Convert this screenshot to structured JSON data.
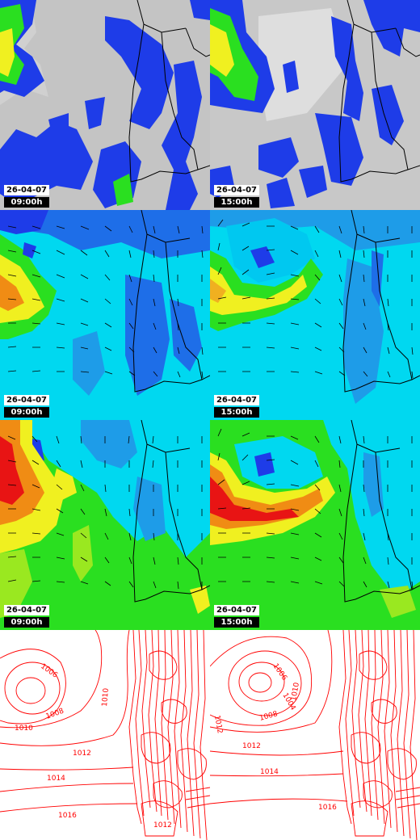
{
  "rows": [
    {
      "id": "cloud",
      "panels": [
        {
          "date": "26-04-07",
          "time": "09:00h"
        },
        {
          "date": "26-04-07",
          "time": "15:00h"
        }
      ]
    },
    {
      "id": "wind-low",
      "panels": [
        {
          "date": "26-04-07",
          "time": "09:00h"
        },
        {
          "date": "26-04-07",
          "time": "15:00h"
        }
      ]
    },
    {
      "id": "wind-high",
      "panels": [
        {
          "date": "26-04-07",
          "time": "09:00h"
        },
        {
          "date": "26-04-07",
          "time": "15:00h"
        }
      ]
    },
    {
      "id": "pressure",
      "panels": [
        {},
        {}
      ]
    }
  ],
  "isobar_labels": {
    "left": [
      "1006",
      "1008",
      "1010",
      "1010",
      "1012",
      "1014",
      "1016",
      "1012"
    ],
    "right": [
      "1006",
      "1004",
      "1008",
      "1010",
      "1012",
      "1012",
      "1014",
      "1016"
    ]
  },
  "colors": {
    "cloud_bg": "#c8c8c8",
    "coast": "#000000",
    "isobar": "#ff0000",
    "blue": "#1e3ce8",
    "cyan": "#00e6ff",
    "green": "#2adf20",
    "yellow": "#f0f020",
    "red": "#e81414"
  }
}
